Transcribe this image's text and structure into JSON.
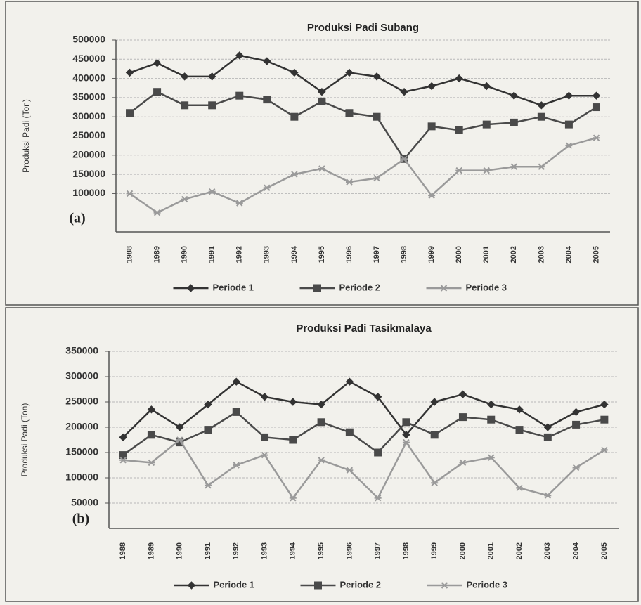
{
  "chart_data": [
    {
      "type": "line",
      "title": "Produksi Padi Subang",
      "y_label": "Produksi Padi (Ton)",
      "panel_label": "(a)",
      "categories": [
        "1988",
        "1989",
        "1990",
        "1991",
        "1992",
        "1993",
        "1994",
        "1995",
        "1996",
        "1997",
        "1998",
        "1999",
        "2000",
        "2001",
        "2002",
        "2003",
        "2004",
        "2005"
      ],
      "series": [
        {
          "name": "Periode 1",
          "color": "#333333",
          "marker": "diamond",
          "values": [
            415000,
            440000,
            405000,
            405000,
            460000,
            445000,
            415000,
            365000,
            415000,
            405000,
            365000,
            380000,
            400000,
            380000,
            355000,
            330000,
            355000,
            355000
          ]
        },
        {
          "name": "Periode 2",
          "color": "#4a4a4a",
          "marker": "square",
          "values": [
            310000,
            365000,
            330000,
            330000,
            355000,
            345000,
            300000,
            340000,
            310000,
            300000,
            190000,
            275000,
            265000,
            280000,
            285000,
            300000,
            280000,
            325000
          ]
        },
        {
          "name": "Periode 3",
          "color": "#9a9a9a",
          "marker": "star",
          "values": [
            100000,
            50000,
            85000,
            105000,
            75000,
            115000,
            150000,
            165000,
            130000,
            140000,
            190000,
            95000,
            160000,
            160000,
            170000,
            170000,
            225000,
            245000
          ]
        }
      ],
      "ylim": [
        0,
        500000
      ],
      "yticks": [
        100000,
        150000,
        200000,
        250000,
        300000,
        350000,
        400000,
        450000,
        500000
      ],
      "grid": true,
      "legend": "bottom"
    },
    {
      "type": "line",
      "title": "Produksi Padi Tasikmalaya",
      "y_label": "Produksi Padi (Ton)",
      "panel_label": "(b)",
      "categories": [
        "1988",
        "1989",
        "1990",
        "1991",
        "1992",
        "1993",
        "1994",
        "1995",
        "1996",
        "1997",
        "1998",
        "1999",
        "2000",
        "2001",
        "2002",
        "2003",
        "2004",
        "2005"
      ],
      "series": [
        {
          "name": "Periode 1",
          "color": "#333333",
          "marker": "diamond",
          "values": [
            180000,
            235000,
            200000,
            245000,
            290000,
            260000,
            250000,
            245000,
            290000,
            260000,
            185000,
            250000,
            265000,
            245000,
            235000,
            200000,
            230000,
            245000
          ]
        },
        {
          "name": "Periode 2",
          "color": "#4a4a4a",
          "marker": "square",
          "values": [
            145000,
            185000,
            170000,
            195000,
            230000,
            180000,
            175000,
            210000,
            190000,
            150000,
            210000,
            185000,
            220000,
            215000,
            195000,
            180000,
            205000,
            215000
          ]
        },
        {
          "name": "Periode 3",
          "color": "#9a9a9a",
          "marker": "star",
          "values": [
            135000,
            130000,
            175000,
            85000,
            125000,
            145000,
            60000,
            135000,
            115000,
            60000,
            170000,
            90000,
            130000,
            140000,
            80000,
            65000,
            120000,
            155000
          ]
        }
      ],
      "ylim": [
        0,
        350000
      ],
      "yticks": [
        50000,
        100000,
        150000,
        200000,
        250000,
        300000,
        350000
      ],
      "grid": true,
      "legend": "bottom"
    }
  ]
}
